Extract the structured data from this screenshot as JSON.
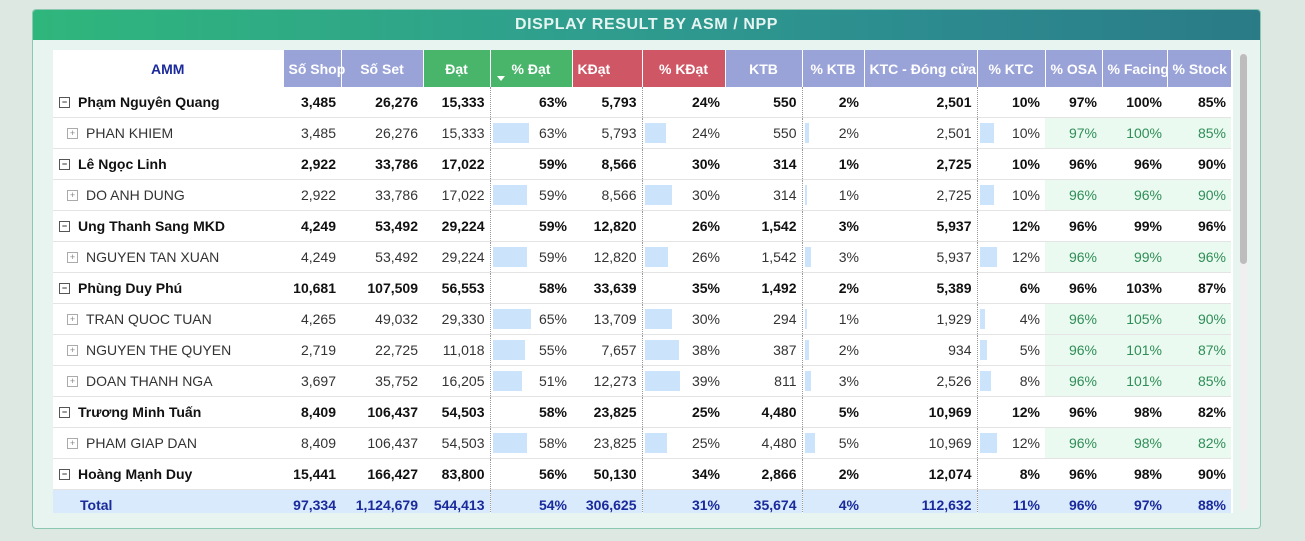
{
  "title": "DISPLAY RESULT  BY ASM / NPP",
  "columns": [
    "AMM",
    "Số Shop",
    "Số Set",
    "Đạt",
    "% Đạt",
    "KĐạt",
    "% KĐạt",
    "KTB",
    "% KTB",
    "KTC - Đóng cửa",
    "% KTC",
    "% OSA",
    "% Facing",
    "% Stock"
  ],
  "rows": [
    {
      "type": "group",
      "name": "Phạm Nguyên Quang",
      "shop": "3,485",
      "set": "26,276",
      "dat": "15,333",
      "pdat": "63%",
      "kdat": "5,793",
      "pkdat": "24%",
      "ktb": "550",
      "pktb": "2%",
      "ktc": "2,501",
      "pktc": "10%",
      "osa": "97%",
      "facing": "100%",
      "stock": "85%"
    },
    {
      "type": "child",
      "name": "PHAN KHIEM",
      "shop": "3,485",
      "set": "26,276",
      "dat": "15,333",
      "pdat": "63%",
      "kdat": "5,793",
      "pkdat": "24%",
      "ktb": "550",
      "pktb": "2%",
      "ktc": "2,501",
      "pktc": "10%",
      "osa": "97%",
      "facing": "100%",
      "stock": "85%",
      "pdat_v": 0.63,
      "pkdat_v": 0.24,
      "pktb_v": 0.02,
      "pktc_v": 0.1
    },
    {
      "type": "group",
      "name": "Lê Ngọc Linh",
      "shop": "2,922",
      "set": "33,786",
      "dat": "17,022",
      "pdat": "59%",
      "kdat": "8,566",
      "pkdat": "30%",
      "ktb": "314",
      "pktb": "1%",
      "ktc": "2,725",
      "pktc": "10%",
      "osa": "96%",
      "facing": "96%",
      "stock": "90%"
    },
    {
      "type": "child",
      "name": "DO ANH DUNG",
      "shop": "2,922",
      "set": "33,786",
      "dat": "17,022",
      "pdat": "59%",
      "kdat": "8,566",
      "pkdat": "30%",
      "ktb": "314",
      "pktb": "1%",
      "ktc": "2,725",
      "pktc": "10%",
      "osa": "96%",
      "facing": "96%",
      "stock": "90%",
      "pdat_v": 0.59,
      "pkdat_v": 0.3,
      "pktb_v": 0.01,
      "pktc_v": 0.1
    },
    {
      "type": "group",
      "name": "Ung Thanh Sang MKD",
      "shop": "4,249",
      "set": "53,492",
      "dat": "29,224",
      "pdat": "59%",
      "kdat": "12,820",
      "pkdat": "26%",
      "ktb": "1,542",
      "pktb": "3%",
      "ktc": "5,937",
      "pktc": "12%",
      "osa": "96%",
      "facing": "99%",
      "stock": "96%"
    },
    {
      "type": "child",
      "name": "NGUYEN TAN XUAN",
      "shop": "4,249",
      "set": "53,492",
      "dat": "29,224",
      "pdat": "59%",
      "kdat": "12,820",
      "pkdat": "26%",
      "ktb": "1,542",
      "pktb": "3%",
      "ktc": "5,937",
      "pktc": "12%",
      "osa": "96%",
      "facing": "99%",
      "stock": "96%",
      "pdat_v": 0.59,
      "pkdat_v": 0.26,
      "pktb_v": 0.03,
      "pktc_v": 0.12
    },
    {
      "type": "group",
      "name": "Phùng Duy Phú",
      "shop": "10,681",
      "set": "107,509",
      "dat": "56,553",
      "pdat": "58%",
      "kdat": "33,639",
      "pkdat": "35%",
      "ktb": "1,492",
      "pktb": "2%",
      "ktc": "5,389",
      "pktc": "6%",
      "osa": "96%",
      "facing": "103%",
      "stock": "87%"
    },
    {
      "type": "child",
      "name": "TRAN QUOC TUAN",
      "shop": "4,265",
      "set": "49,032",
      "dat": "29,330",
      "pdat": "65%",
      "kdat": "13,709",
      "pkdat": "30%",
      "ktb": "294",
      "pktb": "1%",
      "ktc": "1,929",
      "pktc": "4%",
      "osa": "96%",
      "facing": "105%",
      "stock": "90%",
      "pdat_v": 0.65,
      "pkdat_v": 0.3,
      "pktb_v": 0.01,
      "pktc_v": 0.04
    },
    {
      "type": "child",
      "name": "NGUYEN THE QUYEN",
      "shop": "2,719",
      "set": "22,725",
      "dat": "11,018",
      "pdat": "55%",
      "kdat": "7,657",
      "pkdat": "38%",
      "ktb": "387",
      "pktb": "2%",
      "ktc": "934",
      "pktc": "5%",
      "osa": "96%",
      "facing": "101%",
      "stock": "87%",
      "pdat_v": 0.55,
      "pkdat_v": 0.38,
      "pktb_v": 0.02,
      "pktc_v": 0.05
    },
    {
      "type": "child",
      "name": "DOAN THANH NGA",
      "shop": "3,697",
      "set": "35,752",
      "dat": "16,205",
      "pdat": "51%",
      "kdat": "12,273",
      "pkdat": "39%",
      "ktb": "811",
      "pktb": "3%",
      "ktc": "2,526",
      "pktc": "8%",
      "osa": "96%",
      "facing": "101%",
      "stock": "85%",
      "pdat_v": 0.51,
      "pkdat_v": 0.39,
      "pktb_v": 0.03,
      "pktc_v": 0.08
    },
    {
      "type": "group",
      "name": "Trương Minh Tuấn",
      "shop": "8,409",
      "set": "106,437",
      "dat": "54,503",
      "pdat": "58%",
      "kdat": "23,825",
      "pkdat": "25%",
      "ktb": "4,480",
      "pktb": "5%",
      "ktc": "10,969",
      "pktc": "12%",
      "osa": "96%",
      "facing": "98%",
      "stock": "82%"
    },
    {
      "type": "child",
      "name": "PHAM GIAP DAN",
      "shop": "8,409",
      "set": "106,437",
      "dat": "54,503",
      "pdat": "58%",
      "kdat": "23,825",
      "pkdat": "25%",
      "ktb": "4,480",
      "pktb": "5%",
      "ktc": "10,969",
      "pktc": "12%",
      "osa": "96%",
      "facing": "98%",
      "stock": "82%",
      "pdat_v": 0.58,
      "pkdat_v": 0.25,
      "pktb_v": 0.05,
      "pktc_v": 0.12
    },
    {
      "type": "group",
      "name": "Hoàng Mạnh Duy",
      "shop": "15,441",
      "set": "166,427",
      "dat": "83,800",
      "pdat": "56%",
      "kdat": "50,130",
      "pkdat": "34%",
      "ktb": "2,866",
      "pktb": "2%",
      "ktc": "12,074",
      "pktc": "8%",
      "osa": "96%",
      "facing": "98%",
      "stock": "90%"
    }
  ],
  "total": {
    "name": "Total",
    "shop": "97,334",
    "set": "1,124,679",
    "dat": "544,413",
    "pdat": "54%",
    "kdat": "306,625",
    "pkdat": "31%",
    "ktb": "35,674",
    "pktb": "4%",
    "ktc": "112,632",
    "pktc": "11%",
    "osa": "96%",
    "facing": "97%",
    "stock": "88%"
  },
  "icons": {
    "group_toggle": "collapse-minus-icon",
    "child_toggle": "expand-plus-icon",
    "sort": "sort-desc-icon"
  },
  "colors": {
    "header_blue": "#9aa3d8",
    "header_green": "#49b56a",
    "header_red": "#cf5664",
    "bar": "#cce4fb",
    "mint": "#eafaf0",
    "total": "#d8eafb"
  }
}
